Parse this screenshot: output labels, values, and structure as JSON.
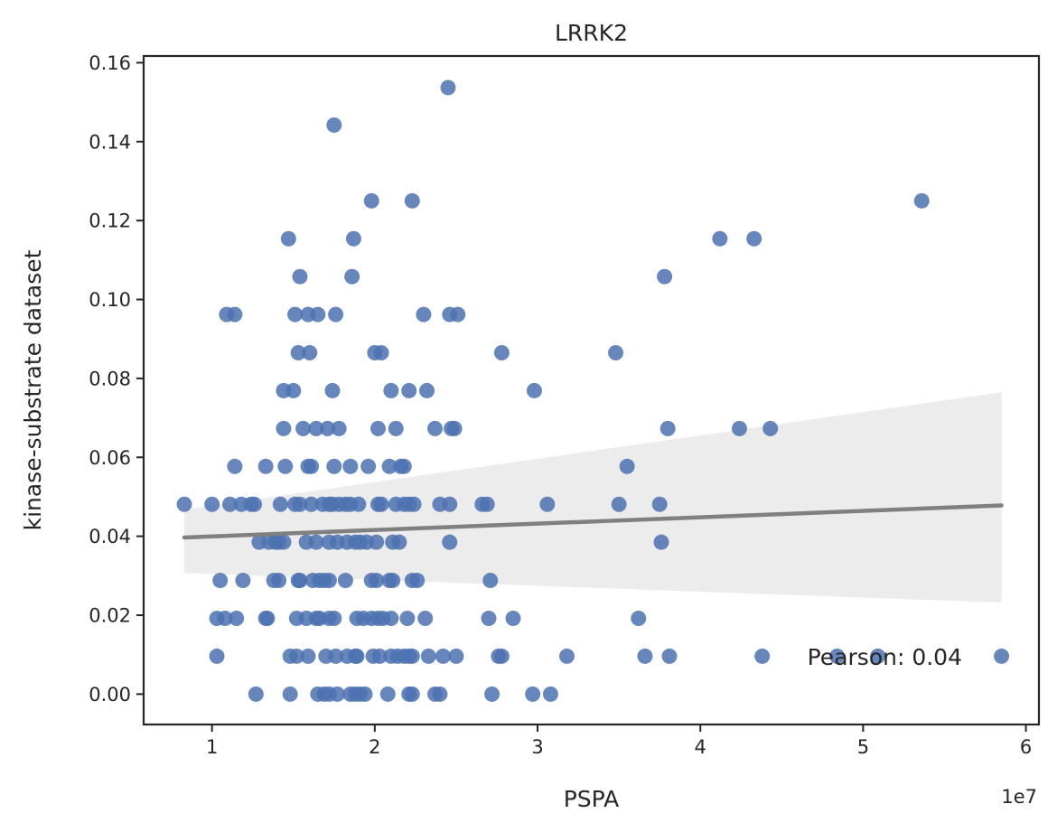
{
  "chart_data": {
    "type": "scatter",
    "title": "LRRK2",
    "xlabel": "PSPA",
    "ylabel": "kinase-substrate dataset",
    "x_offset_label": "1e7",
    "annotation": "Pearson: 0.04",
    "xlim": [
      5800000,
      60800000
    ],
    "ylim": [
      -0.0077,
      0.1617
    ],
    "xticks": [
      10000000,
      20000000,
      30000000,
      40000000,
      50000000,
      60000000
    ],
    "xtick_labels": [
      "1",
      "2",
      "3",
      "4",
      "5",
      "6"
    ],
    "yticks": [
      0.0,
      0.02,
      0.04,
      0.06,
      0.08,
      0.1,
      0.12,
      0.14,
      0.16
    ],
    "ytick_labels": [
      "0.00",
      "0.02",
      "0.04",
      "0.06",
      "0.08",
      "0.10",
      "0.12",
      "0.14",
      "0.16"
    ],
    "grid": false,
    "colors": {
      "points": "#4c72b0",
      "regression_line": "#808080",
      "ci_band": "#ececec",
      "axes": "#262626"
    },
    "regression": {
      "x": [
        8300000,
        58500000
      ],
      "y": [
        0.0397,
        0.0478
      ],
      "ci_lower": [
        0.0307,
        0.0232
      ],
      "ci_upper": [
        0.0468,
        0.0765
      ]
    },
    "points": [
      [
        24500000,
        0.1537
      ],
      [
        17500000,
        0.1442
      ],
      [
        19800000,
        0.125
      ],
      [
        22300000,
        0.125
      ],
      [
        53600000,
        0.125
      ],
      [
        14700000,
        0.1154
      ],
      [
        18700000,
        0.1154
      ],
      [
        41200000,
        0.1154
      ],
      [
        43300000,
        0.1154
      ],
      [
        15400000,
        0.1058
      ],
      [
        18600000,
        0.1058
      ],
      [
        37800000,
        0.1058
      ],
      [
        10900000,
        0.0962
      ],
      [
        11400000,
        0.0962
      ],
      [
        15100000,
        0.0962
      ],
      [
        15900000,
        0.0962
      ],
      [
        16500000,
        0.0962
      ],
      [
        17600000,
        0.0962
      ],
      [
        23000000,
        0.0962
      ],
      [
        24600000,
        0.0962
      ],
      [
        25100000,
        0.0962
      ],
      [
        15300000,
        0.0865
      ],
      [
        16000000,
        0.0865
      ],
      [
        20000000,
        0.0865
      ],
      [
        20400000,
        0.0865
      ],
      [
        27800000,
        0.0865
      ],
      [
        34800000,
        0.0865
      ],
      [
        14400000,
        0.0769
      ],
      [
        15000000,
        0.0769
      ],
      [
        17400000,
        0.0769
      ],
      [
        21000000,
        0.0769
      ],
      [
        22100000,
        0.0769
      ],
      [
        23200000,
        0.0769
      ],
      [
        29800000,
        0.0769
      ],
      [
        14400000,
        0.0673
      ],
      [
        15600000,
        0.0673
      ],
      [
        16400000,
        0.0673
      ],
      [
        17100000,
        0.0673
      ],
      [
        17800000,
        0.0673
      ],
      [
        20200000,
        0.0673
      ],
      [
        21300000,
        0.0673
      ],
      [
        23700000,
        0.0673
      ],
      [
        24700000,
        0.0673
      ],
      [
        24900000,
        0.0673
      ],
      [
        38000000,
        0.0673
      ],
      [
        42400000,
        0.0673
      ],
      [
        44300000,
        0.0673
      ],
      [
        11400000,
        0.0577
      ],
      [
        13300000,
        0.0577
      ],
      [
        14500000,
        0.0577
      ],
      [
        15900000,
        0.0577
      ],
      [
        16100000,
        0.0577
      ],
      [
        17500000,
        0.0577
      ],
      [
        18500000,
        0.0577
      ],
      [
        19600000,
        0.0577
      ],
      [
        20900000,
        0.0577
      ],
      [
        21600000,
        0.0577
      ],
      [
        21800000,
        0.0577
      ],
      [
        35500000,
        0.0577
      ],
      [
        8300000,
        0.0481
      ],
      [
        10000000,
        0.0481
      ],
      [
        11100000,
        0.0481
      ],
      [
        11800000,
        0.0481
      ],
      [
        12400000,
        0.0481
      ],
      [
        12600000,
        0.0481
      ],
      [
        14200000,
        0.0481
      ],
      [
        15100000,
        0.0481
      ],
      [
        15400000,
        0.0481
      ],
      [
        16100000,
        0.0481
      ],
      [
        16800000,
        0.0481
      ],
      [
        17200000,
        0.0481
      ],
      [
        17400000,
        0.0481
      ],
      [
        17800000,
        0.0481
      ],
      [
        18200000,
        0.0481
      ],
      [
        18500000,
        0.0481
      ],
      [
        19000000,
        0.0481
      ],
      [
        20200000,
        0.0481
      ],
      [
        20400000,
        0.0481
      ],
      [
        21300000,
        0.0481
      ],
      [
        21800000,
        0.0481
      ],
      [
        22100000,
        0.0481
      ],
      [
        22400000,
        0.0481
      ],
      [
        24000000,
        0.0481
      ],
      [
        24600000,
        0.0481
      ],
      [
        26600000,
        0.0481
      ],
      [
        26900000,
        0.0481
      ],
      [
        30600000,
        0.0481
      ],
      [
        35000000,
        0.0481
      ],
      [
        37500000,
        0.0481
      ],
      [
        12900000,
        0.0385
      ],
      [
        13500000,
        0.0385
      ],
      [
        13900000,
        0.0385
      ],
      [
        14100000,
        0.0385
      ],
      [
        14400000,
        0.0385
      ],
      [
        15800000,
        0.0385
      ],
      [
        16400000,
        0.0385
      ],
      [
        17200000,
        0.0385
      ],
      [
        17700000,
        0.0385
      ],
      [
        18300000,
        0.0385
      ],
      [
        18800000,
        0.0385
      ],
      [
        19100000,
        0.0385
      ],
      [
        19500000,
        0.0385
      ],
      [
        20100000,
        0.0385
      ],
      [
        21100000,
        0.0385
      ],
      [
        21500000,
        0.0385
      ],
      [
        24600000,
        0.0385
      ],
      [
        37600000,
        0.0385
      ],
      [
        10500000,
        0.0288
      ],
      [
        11900000,
        0.0288
      ],
      [
        13800000,
        0.0288
      ],
      [
        14100000,
        0.0288
      ],
      [
        15300000,
        0.0288
      ],
      [
        15400000,
        0.0288
      ],
      [
        16200000,
        0.0288
      ],
      [
        16600000,
        0.0288
      ],
      [
        16900000,
        0.0288
      ],
      [
        17200000,
        0.0288
      ],
      [
        18200000,
        0.0288
      ],
      [
        19800000,
        0.0288
      ],
      [
        20100000,
        0.0288
      ],
      [
        20900000,
        0.0288
      ],
      [
        21100000,
        0.0288
      ],
      [
        22300000,
        0.0288
      ],
      [
        22600000,
        0.0288
      ],
      [
        27100000,
        0.0288
      ],
      [
        10300000,
        0.0192
      ],
      [
        10800000,
        0.0192
      ],
      [
        11500000,
        0.0192
      ],
      [
        13300000,
        0.0192
      ],
      [
        13400000,
        0.0192
      ],
      [
        15200000,
        0.0192
      ],
      [
        15800000,
        0.0192
      ],
      [
        16400000,
        0.0192
      ],
      [
        16600000,
        0.0192
      ],
      [
        17200000,
        0.0192
      ],
      [
        17500000,
        0.0192
      ],
      [
        18900000,
        0.0192
      ],
      [
        19300000,
        0.0192
      ],
      [
        19800000,
        0.0192
      ],
      [
        20200000,
        0.0192
      ],
      [
        20500000,
        0.0192
      ],
      [
        21000000,
        0.0192
      ],
      [
        22000000,
        0.0192
      ],
      [
        23100000,
        0.0192
      ],
      [
        27000000,
        0.0192
      ],
      [
        28500000,
        0.0192
      ],
      [
        36200000,
        0.0192
      ],
      [
        10300000,
        0.0096
      ],
      [
        14800000,
        0.0096
      ],
      [
        15200000,
        0.0096
      ],
      [
        15900000,
        0.0096
      ],
      [
        17000000,
        0.0096
      ],
      [
        17600000,
        0.0096
      ],
      [
        18300000,
        0.0096
      ],
      [
        18800000,
        0.0096
      ],
      [
        18900000,
        0.0096
      ],
      [
        19900000,
        0.0096
      ],
      [
        20300000,
        0.0096
      ],
      [
        21000000,
        0.0096
      ],
      [
        21400000,
        0.0096
      ],
      [
        21800000,
        0.0096
      ],
      [
        22100000,
        0.0096
      ],
      [
        22300000,
        0.0096
      ],
      [
        23300000,
        0.0096
      ],
      [
        24200000,
        0.0096
      ],
      [
        25000000,
        0.0096
      ],
      [
        27600000,
        0.0096
      ],
      [
        27800000,
        0.0096
      ],
      [
        31800000,
        0.0096
      ],
      [
        36600000,
        0.0096
      ],
      [
        38100000,
        0.0096
      ],
      [
        43800000,
        0.0096
      ],
      [
        48400000,
        0.0096
      ],
      [
        50900000,
        0.0096
      ],
      [
        58500000,
        0.0096
      ],
      [
        12700000,
        0.0
      ],
      [
        14800000,
        0.0
      ],
      [
        16500000,
        0.0
      ],
      [
        16900000,
        0.0
      ],
      [
        17200000,
        0.0
      ],
      [
        17700000,
        0.0
      ],
      [
        18500000,
        0.0
      ],
      [
        18800000,
        0.0
      ],
      [
        19100000,
        0.0
      ],
      [
        19400000,
        0.0
      ],
      [
        20800000,
        0.0
      ],
      [
        22100000,
        0.0
      ],
      [
        22300000,
        0.0
      ],
      [
        23700000,
        0.0
      ],
      [
        24000000,
        0.0
      ],
      [
        27200000,
        0.0
      ],
      [
        29700000,
        0.0
      ],
      [
        30800000,
        0.0
      ]
    ]
  }
}
